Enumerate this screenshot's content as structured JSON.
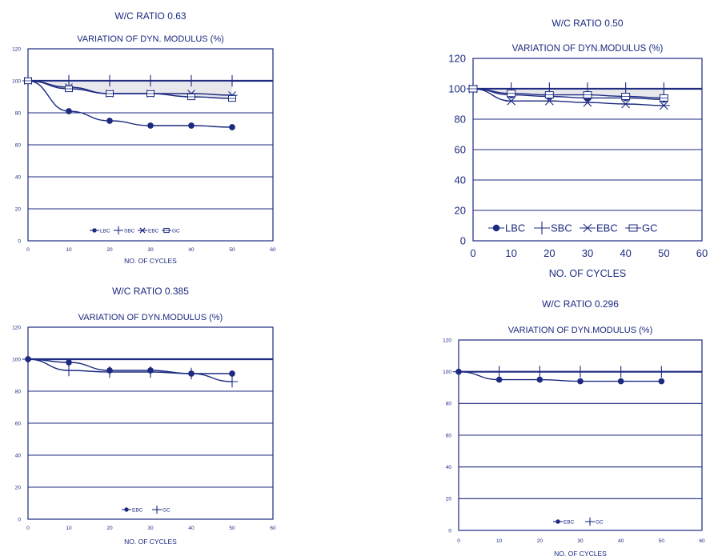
{
  "chart_data": [
    {
      "type": "line",
      "title": "W/C RATIO 0.63",
      "subtitle": "VARIATION OF DYN. MODULUS (%)",
      "xlabel": "NO. OF CYCLES",
      "ylabel": "",
      "xlim": [
        0,
        60
      ],
      "ylim": [
        0,
        120
      ],
      "xticks": [
        "0",
        "10",
        "20",
        "30",
        "40",
        "50",
        "60"
      ],
      "yticks": [
        "0",
        "20",
        "40",
        "60",
        "80",
        "100",
        "120"
      ],
      "grid": "horizontal",
      "legend_position": "bottom-center",
      "x": [
        0,
        10,
        20,
        30,
        40,
        50
      ],
      "series": [
        {
          "name": "LBC",
          "marker": "dot",
          "values": [
            100,
            81,
            75,
            72,
            72,
            71
          ]
        },
        {
          "name": "SBC",
          "marker": "plus",
          "values": [
            100,
            100,
            100,
            100,
            100,
            100
          ]
        },
        {
          "name": "EBC",
          "marker": "star",
          "values": [
            100,
            96,
            92,
            92,
            92,
            91
          ]
        },
        {
          "name": "GC",
          "marker": "square",
          "values": [
            100,
            95,
            92,
            92,
            90,
            89
          ]
        }
      ]
    },
    {
      "type": "line",
      "title": "W/C RATIO 0.50",
      "subtitle": "VARIATION OF DYN.MODULUS (%)",
      "xlabel": "NO. OF CYCLES",
      "ylabel": "",
      "xlim": [
        0,
        60
      ],
      "ylim": [
        0,
        120
      ],
      "xticks": [
        "0",
        "10",
        "20",
        "30",
        "40",
        "50",
        "60"
      ],
      "yticks": [
        "0",
        "20",
        "40",
        "60",
        "80",
        "100",
        "120"
      ],
      "grid": "horizontal",
      "legend_position": "bottom-center",
      "x": [
        0,
        10,
        20,
        30,
        40,
        50
      ],
      "series": [
        {
          "name": "LBC",
          "marker": "dot",
          "values": [
            100,
            96,
            95,
            94,
            94,
            93
          ]
        },
        {
          "name": "SBC",
          "marker": "plus",
          "values": [
            100,
            100,
            100,
            100,
            100,
            100
          ]
        },
        {
          "name": "EBC",
          "marker": "star",
          "values": [
            100,
            92,
            92,
            91,
            90,
            89
          ]
        },
        {
          "name": "GC",
          "marker": "square",
          "values": [
            100,
            97,
            96,
            96,
            95,
            94
          ]
        }
      ]
    },
    {
      "type": "line",
      "title": "W/C RATIO 0.385",
      "subtitle": "VARIATION OF DYN.MODULUS (%)",
      "xlabel": "NO. OF CYCLES",
      "ylabel": "",
      "xlim": [
        0,
        60
      ],
      "ylim": [
        0,
        120
      ],
      "xticks": [
        "0",
        "10",
        "20",
        "30",
        "40",
        "50",
        "60"
      ],
      "yticks": [
        "0",
        "20",
        "40",
        "60",
        "80",
        "100",
        "120"
      ],
      "grid": "horizontal",
      "legend_position": "bottom-center",
      "x": [
        0,
        10,
        20,
        30,
        40,
        50
      ],
      "series": [
        {
          "name": "EBC",
          "marker": "dot",
          "values": [
            100,
            98,
            93,
            93,
            91,
            91
          ]
        },
        {
          "name": "GC",
          "marker": "plus",
          "values": [
            100,
            93,
            92,
            92,
            91,
            86
          ]
        }
      ]
    },
    {
      "type": "line",
      "title": "W/C RATIO 0.296",
      "subtitle": "VARIATION OF DYN.MODULUS (%)",
      "xlabel": "NO. OF CYCLES",
      "ylabel": "",
      "xlim": [
        0,
        60
      ],
      "ylim": [
        0,
        120
      ],
      "xticks": [
        "0",
        "10",
        "20",
        "30",
        "40",
        "50",
        "60"
      ],
      "yticks": [
        "0",
        "20",
        "40",
        "60",
        "80",
        "100",
        "120"
      ],
      "grid": "horizontal",
      "legend_position": "bottom-center",
      "x": [
        0,
        10,
        20,
        30,
        40,
        50
      ],
      "series": [
        {
          "name": "EBC",
          "marker": "dot",
          "values": [
            100,
            95,
            95,
            94,
            94,
            94
          ]
        },
        {
          "name": "GC",
          "marker": "plus",
          "values": [
            100,
            100,
            100,
            100,
            100,
            100
          ]
        }
      ]
    }
  ],
  "colors": {
    "ink": "#1c2a80",
    "background": "#ffffff",
    "gc_fill": "#d8d8e0"
  }
}
